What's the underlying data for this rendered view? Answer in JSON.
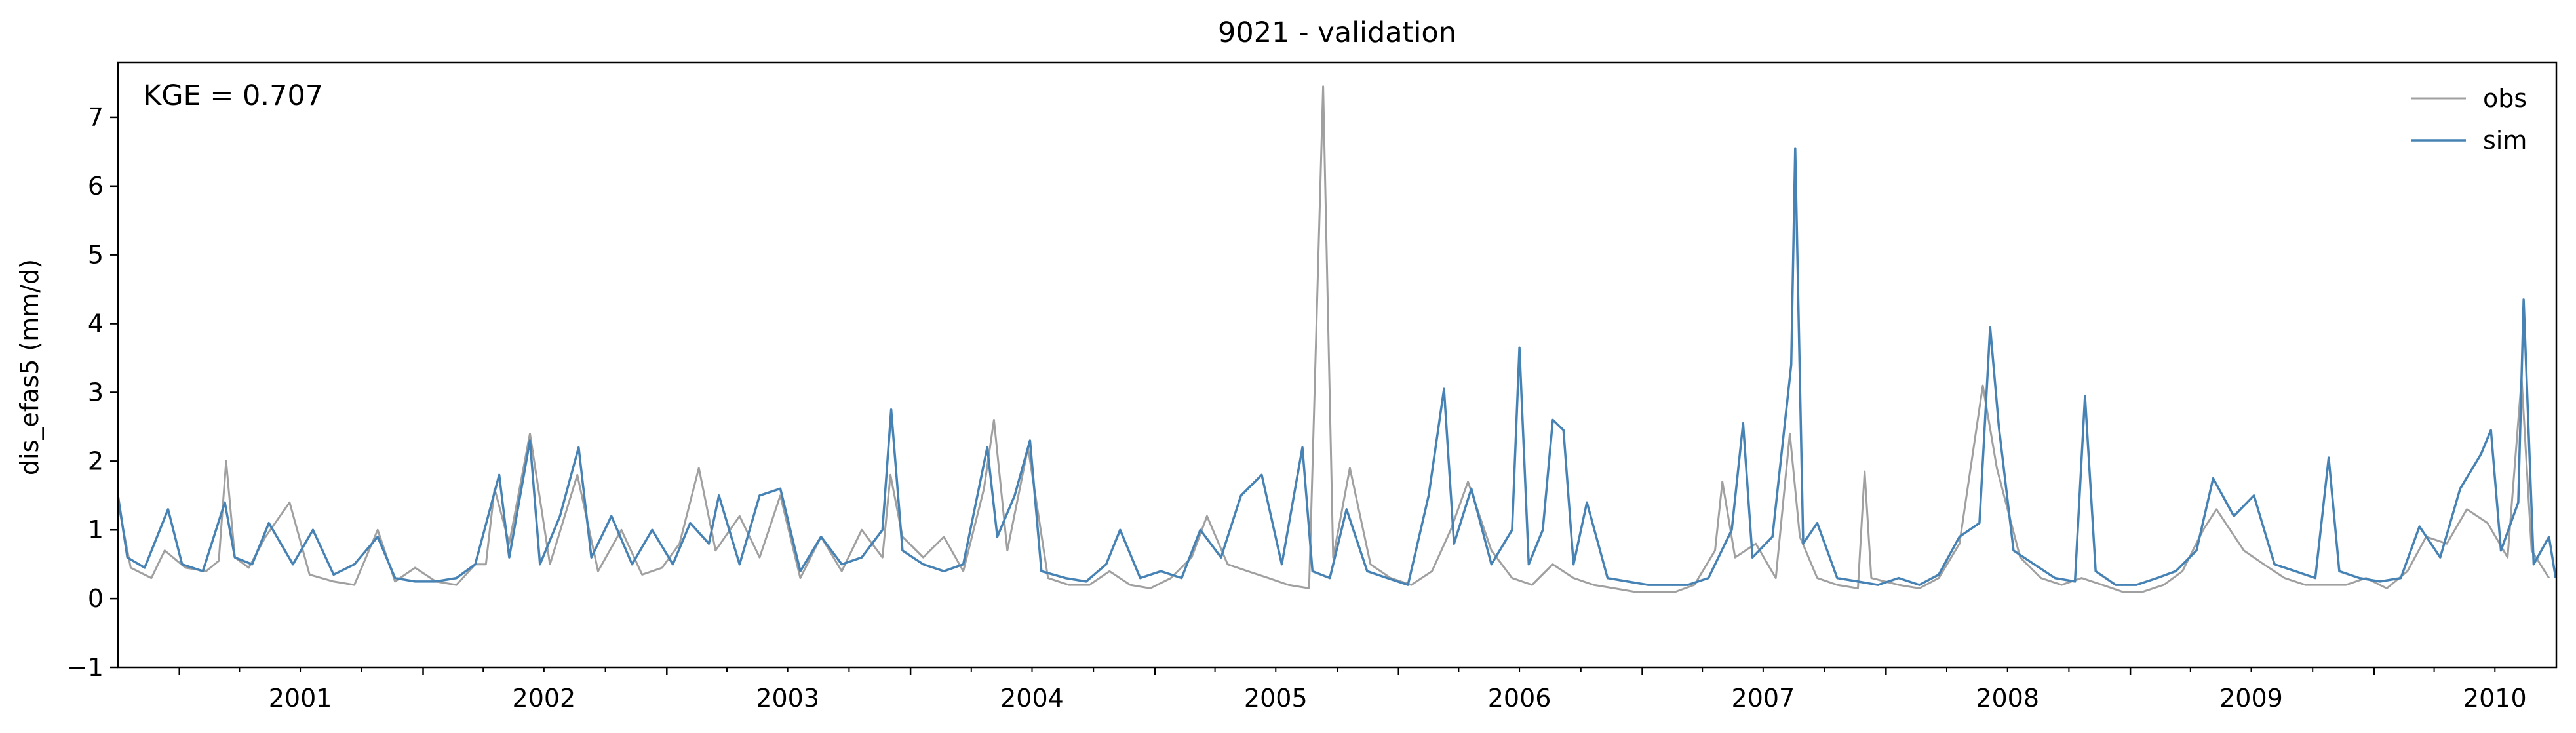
{
  "chart_data": {
    "type": "line",
    "title": "9021 - validation",
    "xlabel": "",
    "ylabel": "dis_efas5 (mm/d)",
    "x_axis": "date",
    "xlim": [
      "2000-10-01",
      "2010-10-01"
    ],
    "ylim": [
      -1,
      7.8
    ],
    "yticks": [
      -1,
      0,
      1,
      2,
      3,
      4,
      5,
      6,
      7
    ],
    "xticks": [
      "2001",
      "2002",
      "2003",
      "2004",
      "2005",
      "2006",
      "2007",
      "2008",
      "2009",
      "2010"
    ],
    "grid": false,
    "legend_position": "top-right",
    "annotation": "KGE = 0.707",
    "series": [
      {
        "name": "obs",
        "color": "#a0a0a0",
        "points": [
          [
            "2000-10-01",
            1.4
          ],
          [
            "2000-10-20",
            0.45
          ],
          [
            "2000-11-20",
            0.3
          ],
          [
            "2000-12-10",
            0.7
          ],
          [
            "2001-01-10",
            0.45
          ],
          [
            "2001-02-10",
            0.4
          ],
          [
            "2001-03-01",
            0.55
          ],
          [
            "2001-03-12",
            2.0
          ],
          [
            "2001-03-25",
            0.6
          ],
          [
            "2001-04-15",
            0.45
          ],
          [
            "2001-05-10",
            0.9
          ],
          [
            "2001-06-15",
            1.4
          ],
          [
            "2001-07-15",
            0.35
          ],
          [
            "2001-08-20",
            0.25
          ],
          [
            "2001-09-20",
            0.2
          ],
          [
            "2001-10-25",
            1.0
          ],
          [
            "2001-11-20",
            0.25
          ],
          [
            "2001-12-20",
            0.45
          ],
          [
            "2002-01-20",
            0.25
          ],
          [
            "2002-02-20",
            0.2
          ],
          [
            "2002-03-20",
            0.5
          ],
          [
            "2002-04-05",
            0.5
          ],
          [
            "2002-04-18",
            1.6
          ],
          [
            "2002-05-10",
            0.8
          ],
          [
            "2002-06-10",
            2.4
          ],
          [
            "2002-07-10",
            0.5
          ],
          [
            "2002-08-20",
            1.8
          ],
          [
            "2002-09-20",
            0.4
          ],
          [
            "2002-10-25",
            1.0
          ],
          [
            "2002-11-25",
            0.35
          ],
          [
            "2002-12-25",
            0.45
          ],
          [
            "2003-01-20",
            0.8
          ],
          [
            "2003-02-18",
            1.9
          ],
          [
            "2003-03-15",
            0.7
          ],
          [
            "2003-04-20",
            1.2
          ],
          [
            "2003-05-20",
            0.6
          ],
          [
            "2003-06-20",
            1.5
          ],
          [
            "2003-07-20",
            0.3
          ],
          [
            "2003-08-20",
            0.9
          ],
          [
            "2003-09-20",
            0.4
          ],
          [
            "2003-10-20",
            1.0
          ],
          [
            "2003-11-20",
            0.6
          ],
          [
            "2003-12-02",
            1.8
          ],
          [
            "2003-12-20",
            0.9
          ],
          [
            "2004-01-20",
            0.6
          ],
          [
            "2004-02-20",
            0.9
          ],
          [
            "2004-03-20",
            0.4
          ],
          [
            "2004-04-20",
            1.6
          ],
          [
            "2004-05-05",
            2.6
          ],
          [
            "2004-05-25",
            0.7
          ],
          [
            "2004-06-25",
            2.2
          ],
          [
            "2004-07-25",
            0.3
          ],
          [
            "2004-08-25",
            0.2
          ],
          [
            "2004-09-25",
            0.2
          ],
          [
            "2004-10-25",
            0.4
          ],
          [
            "2004-11-25",
            0.2
          ],
          [
            "2004-12-25",
            0.15
          ],
          [
            "2005-01-25",
            0.3
          ],
          [
            "2005-02-25",
            0.6
          ],
          [
            "2005-03-20",
            1.2
          ],
          [
            "2005-04-20",
            0.5
          ],
          [
            "2005-05-20",
            0.4
          ],
          [
            "2005-06-20",
            0.3
          ],
          [
            "2005-07-20",
            0.2
          ],
          [
            "2005-08-20",
            0.15
          ],
          [
            "2005-09-10",
            7.45
          ],
          [
            "2005-09-25",
            0.6
          ],
          [
            "2005-10-20",
            1.9
          ],
          [
            "2005-11-20",
            0.5
          ],
          [
            "2005-12-20",
            0.3
          ],
          [
            "2006-01-20",
            0.2
          ],
          [
            "2006-02-20",
            0.4
          ],
          [
            "2006-03-20",
            1.0
          ],
          [
            "2006-04-15",
            1.7
          ],
          [
            "2006-05-20",
            0.7
          ],
          [
            "2006-06-20",
            0.3
          ],
          [
            "2006-07-20",
            0.2
          ],
          [
            "2006-08-20",
            0.5
          ],
          [
            "2006-09-20",
            0.3
          ],
          [
            "2006-10-20",
            0.2
          ],
          [
            "2006-11-20",
            0.15
          ],
          [
            "2006-12-20",
            0.1
          ],
          [
            "2007-01-20",
            0.1
          ],
          [
            "2007-02-20",
            0.1
          ],
          [
            "2007-03-20",
            0.2
          ],
          [
            "2007-04-20",
            0.7
          ],
          [
            "2007-05-01",
            1.7
          ],
          [
            "2007-05-20",
            0.6
          ],
          [
            "2007-06-20",
            0.8
          ],
          [
            "2007-07-20",
            0.3
          ],
          [
            "2007-08-10",
            2.4
          ],
          [
            "2007-08-25",
            0.9
          ],
          [
            "2007-09-20",
            0.3
          ],
          [
            "2007-10-20",
            0.2
          ],
          [
            "2007-11-20",
            0.15
          ],
          [
            "2007-11-30",
            1.85
          ],
          [
            "2007-12-10",
            0.3
          ],
          [
            "2008-01-20",
            0.2
          ],
          [
            "2008-02-20",
            0.15
          ],
          [
            "2008-03-20",
            0.3
          ],
          [
            "2008-04-20",
            0.8
          ],
          [
            "2008-05-25",
            3.1
          ],
          [
            "2008-06-15",
            1.9
          ],
          [
            "2008-07-20",
            0.6
          ],
          [
            "2008-08-20",
            0.3
          ],
          [
            "2008-09-20",
            0.2
          ],
          [
            "2008-10-20",
            0.3
          ],
          [
            "2008-11-20",
            0.2
          ],
          [
            "2008-12-20",
            0.1
          ],
          [
            "2009-01-20",
            0.1
          ],
          [
            "2009-02-20",
            0.2
          ],
          [
            "2009-03-20",
            0.4
          ],
          [
            "2009-04-20",
            1.0
          ],
          [
            "2009-05-10",
            1.3
          ],
          [
            "2009-06-20",
            0.7
          ],
          [
            "2009-07-20",
            0.5
          ],
          [
            "2009-08-20",
            0.3
          ],
          [
            "2009-09-20",
            0.2
          ],
          [
            "2009-10-20",
            0.2
          ],
          [
            "2009-11-20",
            0.2
          ],
          [
            "2009-12-20",
            0.3
          ],
          [
            "2010-01-20",
            0.15
          ],
          [
            "2010-02-20",
            0.4
          ],
          [
            "2010-03-20",
            0.9
          ],
          [
            "2010-04-20",
            0.8
          ],
          [
            "2010-05-20",
            1.3
          ],
          [
            "2010-06-20",
            1.1
          ],
          [
            "2010-07-20",
            0.6
          ],
          [
            "2010-08-10",
            3.2
          ],
          [
            "2010-08-25",
            0.7
          ],
          [
            "2010-09-20",
            0.3
          ]
        ]
      },
      {
        "name": "sim",
        "color": "#4682b4",
        "points": [
          [
            "2000-10-01",
            1.5
          ],
          [
            "2000-10-15",
            0.6
          ],
          [
            "2000-11-10",
            0.45
          ],
          [
            "2000-12-15",
            1.3
          ],
          [
            "2001-01-05",
            0.5
          ],
          [
            "2001-02-05",
            0.4
          ],
          [
            "2001-03-10",
            1.4
          ],
          [
            "2001-03-25",
            0.6
          ],
          [
            "2001-04-20",
            0.5
          ],
          [
            "2001-05-15",
            1.1
          ],
          [
            "2001-06-20",
            0.5
          ],
          [
            "2001-07-20",
            1.0
          ],
          [
            "2001-08-20",
            0.35
          ],
          [
            "2001-09-20",
            0.5
          ],
          [
            "2001-10-25",
            0.9
          ],
          [
            "2001-11-20",
            0.3
          ],
          [
            "2001-12-20",
            0.25
          ],
          [
            "2002-01-20",
            0.25
          ],
          [
            "2002-02-20",
            0.3
          ],
          [
            "2002-03-20",
            0.5
          ],
          [
            "2002-04-25",
            1.8
          ],
          [
            "2002-05-10",
            0.6
          ],
          [
            "2002-06-10",
            2.3
          ],
          [
            "2002-06-25",
            0.5
          ],
          [
            "2002-07-25",
            1.2
          ],
          [
            "2002-08-22",
            2.2
          ],
          [
            "2002-09-10",
            0.6
          ],
          [
            "2002-10-10",
            1.2
          ],
          [
            "2002-11-10",
            0.5
          ],
          [
            "2002-12-10",
            1.0
          ],
          [
            "2003-01-10",
            0.5
          ],
          [
            "2003-02-05",
            1.1
          ],
          [
            "2003-03-05",
            0.8
          ],
          [
            "2003-03-20",
            1.5
          ],
          [
            "2003-04-20",
            0.5
          ],
          [
            "2003-05-20",
            1.5
          ],
          [
            "2003-06-20",
            1.6
          ],
          [
            "2003-07-20",
            0.4
          ],
          [
            "2003-08-20",
            0.9
          ],
          [
            "2003-09-20",
            0.5
          ],
          [
            "2003-10-20",
            0.6
          ],
          [
            "2003-11-20",
            1.0
          ],
          [
            "2003-12-03",
            2.75
          ],
          [
            "2003-12-20",
            0.7
          ],
          [
            "2004-01-20",
            0.5
          ],
          [
            "2004-02-20",
            0.4
          ],
          [
            "2004-03-20",
            0.5
          ],
          [
            "2004-04-25",
            2.2
          ],
          [
            "2004-05-10",
            0.9
          ],
          [
            "2004-06-05",
            1.5
          ],
          [
            "2004-06-28",
            2.3
          ],
          [
            "2004-07-15",
            0.4
          ],
          [
            "2004-08-20",
            0.3
          ],
          [
            "2004-09-20",
            0.25
          ],
          [
            "2004-10-20",
            0.5
          ],
          [
            "2004-11-10",
            1.0
          ],
          [
            "2004-12-10",
            0.3
          ],
          [
            "2005-01-10",
            0.4
          ],
          [
            "2005-02-10",
            0.3
          ],
          [
            "2005-03-10",
            1.0
          ],
          [
            "2005-04-10",
            0.6
          ],
          [
            "2005-05-10",
            1.5
          ],
          [
            "2005-06-10",
            1.8
          ],
          [
            "2005-07-10",
            0.5
          ],
          [
            "2005-08-10",
            2.2
          ],
          [
            "2005-08-25",
            0.4
          ],
          [
            "2005-09-20",
            0.3
          ],
          [
            "2005-10-15",
            1.3
          ],
          [
            "2005-11-15",
            0.4
          ],
          [
            "2005-12-15",
            0.3
          ],
          [
            "2006-01-15",
            0.2
          ],
          [
            "2006-02-15",
            1.5
          ],
          [
            "2006-03-10",
            3.05
          ],
          [
            "2006-03-25",
            0.8
          ],
          [
            "2006-04-20",
            1.6
          ],
          [
            "2006-05-20",
            0.5
          ],
          [
            "2006-06-20",
            1.0
          ],
          [
            "2006-07-01",
            3.65
          ],
          [
            "2006-07-15",
            0.5
          ],
          [
            "2006-08-05",
            1.0
          ],
          [
            "2006-08-20",
            2.6
          ],
          [
            "2006-09-05",
            2.45
          ],
          [
            "2006-09-20",
            0.5
          ],
          [
            "2006-10-10",
            1.4
          ],
          [
            "2006-11-10",
            0.3
          ],
          [
            "2006-12-10",
            0.25
          ],
          [
            "2007-01-10",
            0.2
          ],
          [
            "2007-02-10",
            0.2
          ],
          [
            "2007-03-10",
            0.2
          ],
          [
            "2007-04-10",
            0.3
          ],
          [
            "2007-05-15",
            1.0
          ],
          [
            "2007-06-01",
            2.55
          ],
          [
            "2007-06-15",
            0.6
          ],
          [
            "2007-07-15",
            0.9
          ],
          [
            "2007-08-12",
            3.4
          ],
          [
            "2007-08-18",
            6.55
          ],
          [
            "2007-08-30",
            0.8
          ],
          [
            "2007-09-20",
            1.1
          ],
          [
            "2007-10-20",
            0.3
          ],
          [
            "2007-11-20",
            0.25
          ],
          [
            "2007-12-20",
            0.2
          ],
          [
            "2008-01-20",
            0.3
          ],
          [
            "2008-02-20",
            0.2
          ],
          [
            "2008-03-20",
            0.35
          ],
          [
            "2008-04-20",
            0.9
          ],
          [
            "2008-05-20",
            1.1
          ],
          [
            "2008-06-05",
            3.95
          ],
          [
            "2008-06-18",
            2.5
          ],
          [
            "2008-07-10",
            0.7
          ],
          [
            "2008-08-10",
            0.5
          ],
          [
            "2008-09-10",
            0.3
          ],
          [
            "2008-10-10",
            0.25
          ],
          [
            "2008-10-25",
            2.95
          ],
          [
            "2008-11-10",
            0.4
          ],
          [
            "2008-12-10",
            0.2
          ],
          [
            "2009-01-10",
            0.2
          ],
          [
            "2009-02-10",
            0.3
          ],
          [
            "2009-03-10",
            0.4
          ],
          [
            "2009-04-10",
            0.7
          ],
          [
            "2009-05-05",
            1.75
          ],
          [
            "2009-06-05",
            1.2
          ],
          [
            "2009-07-05",
            1.5
          ],
          [
            "2009-08-05",
            0.5
          ],
          [
            "2009-09-05",
            0.4
          ],
          [
            "2009-10-05",
            0.3
          ],
          [
            "2009-10-25",
            2.05
          ],
          [
            "2009-11-10",
            0.4
          ],
          [
            "2009-12-10",
            0.3
          ],
          [
            "2010-01-10",
            0.25
          ],
          [
            "2010-02-10",
            0.3
          ],
          [
            "2010-03-10",
            1.05
          ],
          [
            "2010-04-10",
            0.6
          ],
          [
            "2010-05-10",
            1.6
          ],
          [
            "2010-06-10",
            2.1
          ],
          [
            "2010-06-25",
            2.45
          ],
          [
            "2010-07-10",
            0.7
          ],
          [
            "2010-08-05",
            1.4
          ],
          [
            "2010-08-13",
            4.35
          ],
          [
            "2010-08-28",
            0.5
          ],
          [
            "2010-09-20",
            0.9
          ],
          [
            "2010-09-30",
            0.3
          ]
        ]
      }
    ]
  }
}
